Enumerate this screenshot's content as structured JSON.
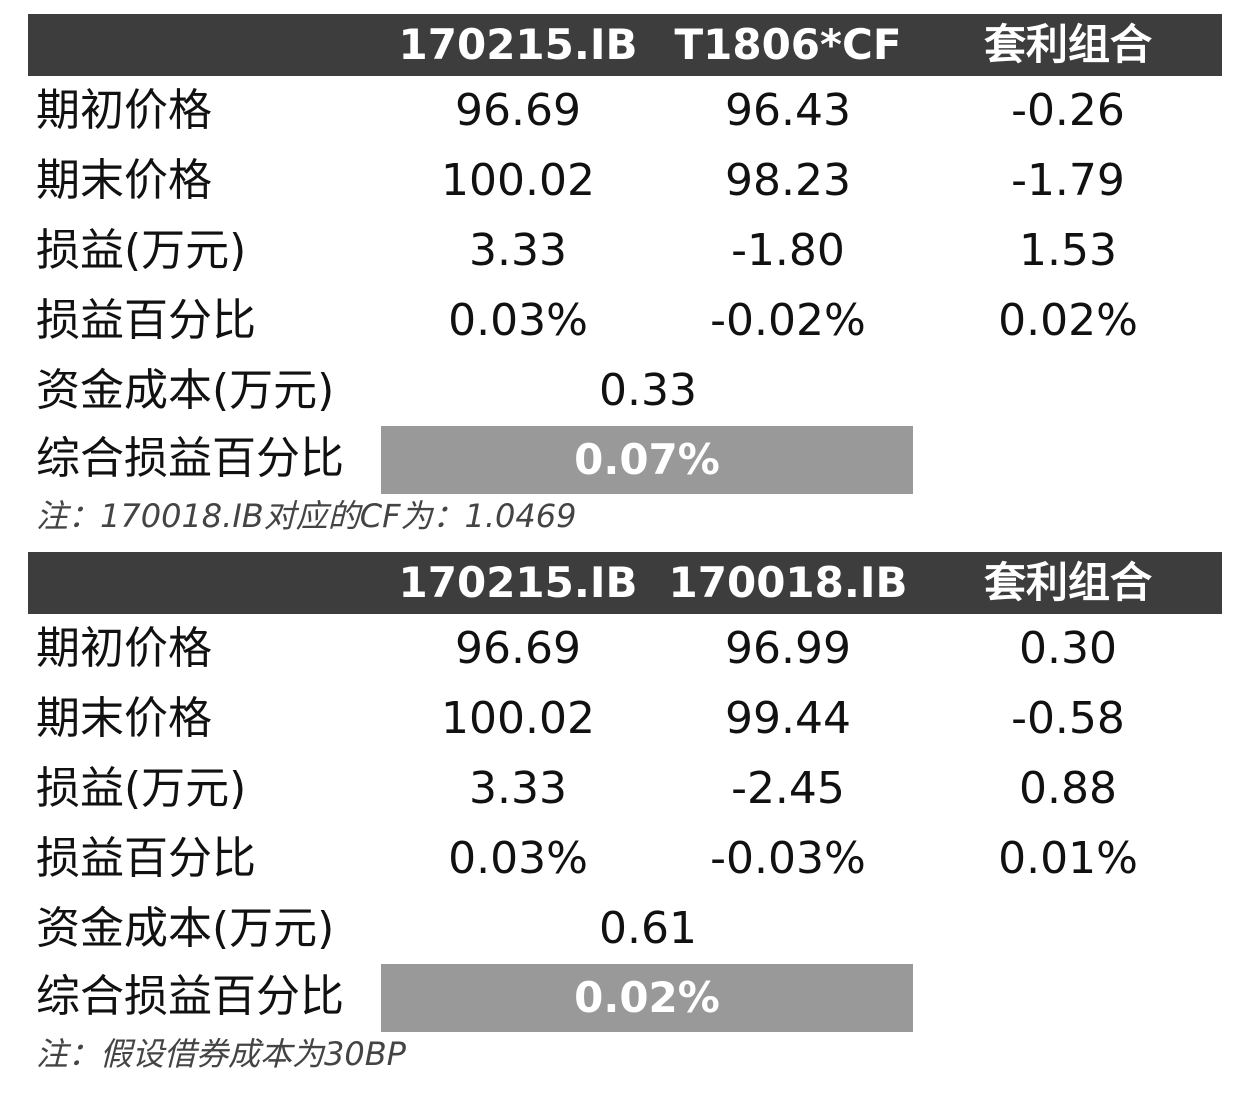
{
  "tables": [
    {
      "header": [
        "",
        "170215.IB",
        "T1806*CF",
        "套利组合"
      ],
      "rows": [
        {
          "label": "期初价格",
          "values": [
            "96.69",
            "96.43",
            "-0.26"
          ]
        },
        {
          "label": "期末价格",
          "values": [
            "100.02",
            "98.23",
            "-1.79"
          ]
        },
        {
          "label": "损益(万元)",
          "values": [
            "3.33",
            "-1.80",
            "1.53"
          ]
        },
        {
          "label": "损益百分比",
          "values": [
            "0.03%",
            "-0.02%",
            "0.02%"
          ]
        }
      ],
      "funding_cost": {
        "label": "资金成本(万元)",
        "value": "0.33"
      },
      "total": {
        "label": "综合损益百分比",
        "value": "0.07%"
      },
      "note": "注：170018.IB对应的CF为：1.0469"
    },
    {
      "header": [
        "",
        "170215.IB",
        "170018.IB",
        "套利组合"
      ],
      "rows": [
        {
          "label": "期初价格",
          "values": [
            "96.69",
            "96.99",
            "0.30"
          ]
        },
        {
          "label": "期末价格",
          "values": [
            "100.02",
            "99.44",
            "-0.58"
          ]
        },
        {
          "label": "损益(万元)",
          "values": [
            "3.33",
            "-2.45",
            "0.88"
          ]
        },
        {
          "label": "损益百分比",
          "values": [
            "0.03%",
            "-0.03%",
            "0.01%"
          ]
        }
      ],
      "funding_cost": {
        "label": "资金成本(万元)",
        "value": "0.61"
      },
      "total": {
        "label": "综合损益百分比",
        "value": "0.02%"
      },
      "note": "注：假设借券成本为30BP"
    }
  ],
  "colors": {
    "header_bg": "#3d3d3d",
    "header_text": "#ffffff",
    "total_bg": "#999999",
    "total_text": "#ffffff",
    "body_text": "#111111"
  }
}
